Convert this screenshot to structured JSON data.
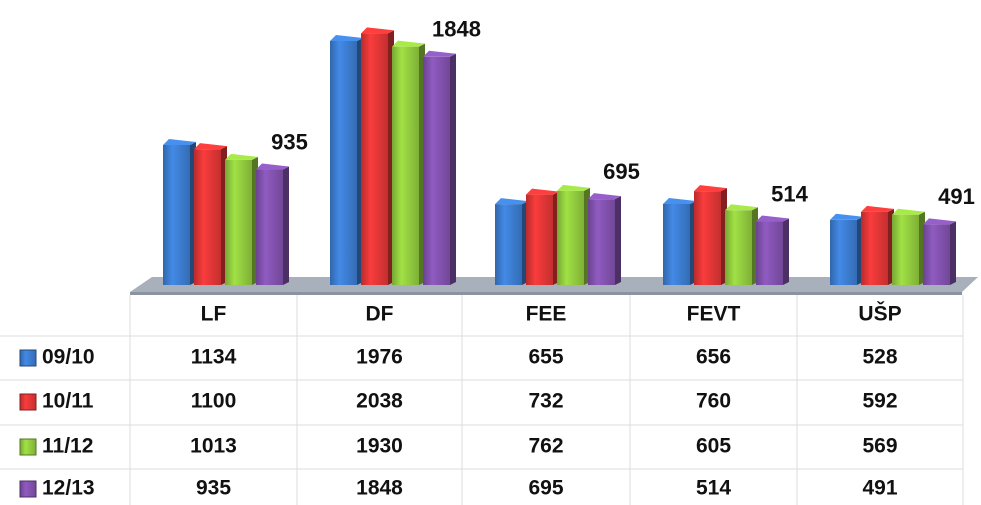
{
  "chart_data": {
    "type": "bar",
    "categories": [
      "LF",
      "DF",
      "FEE",
      "FEVT",
      "UŠP"
    ],
    "series": [
      {
        "name": "09/10",
        "color": "#3a78c8",
        "values": [
          1134,
          1976,
          655,
          656,
          528
        ]
      },
      {
        "name": "10/11",
        "color": "#d93434",
        "values": [
          1100,
          2038,
          732,
          760,
          592
        ]
      },
      {
        "name": "11/12",
        "color": "#8cc43c",
        "values": [
          1013,
          1930,
          762,
          605,
          569
        ]
      },
      {
        "name": "12/13",
        "color": "#7d4fa8",
        "values": [
          935,
          1848,
          695,
          514,
          491
        ]
      }
    ],
    "ylim": [
      0,
      2300
    ]
  }
}
